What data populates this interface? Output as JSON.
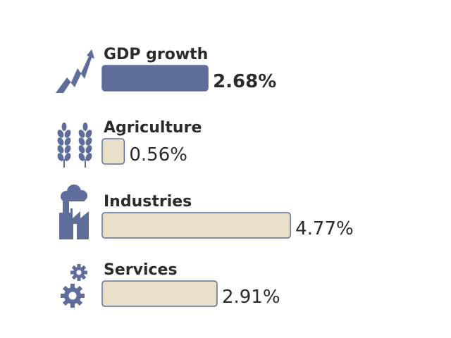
{
  "chart_data": {
    "type": "bar",
    "categories": [
      "GDP growth",
      "Agriculture",
      "Industries",
      "Services"
    ],
    "values": [
      2.68,
      0.56,
      4.77,
      2.91
    ],
    "value_labels": [
      "2.68%",
      "0.56%",
      "4.77%",
      "2.91%"
    ],
    "icons": [
      "rising-arrow-icon",
      "wheat-icon",
      "factory-icon",
      "gears-icon"
    ],
    "orientation": "horizontal",
    "grid": false,
    "legend": "none"
  },
  "colors": {
    "highlight_fill": "#5e6d9a",
    "fill": "#e8e0c9",
    "stroke": "#5e6d9a",
    "icon": "#5e6d9a",
    "text": "#2b2b2b"
  }
}
